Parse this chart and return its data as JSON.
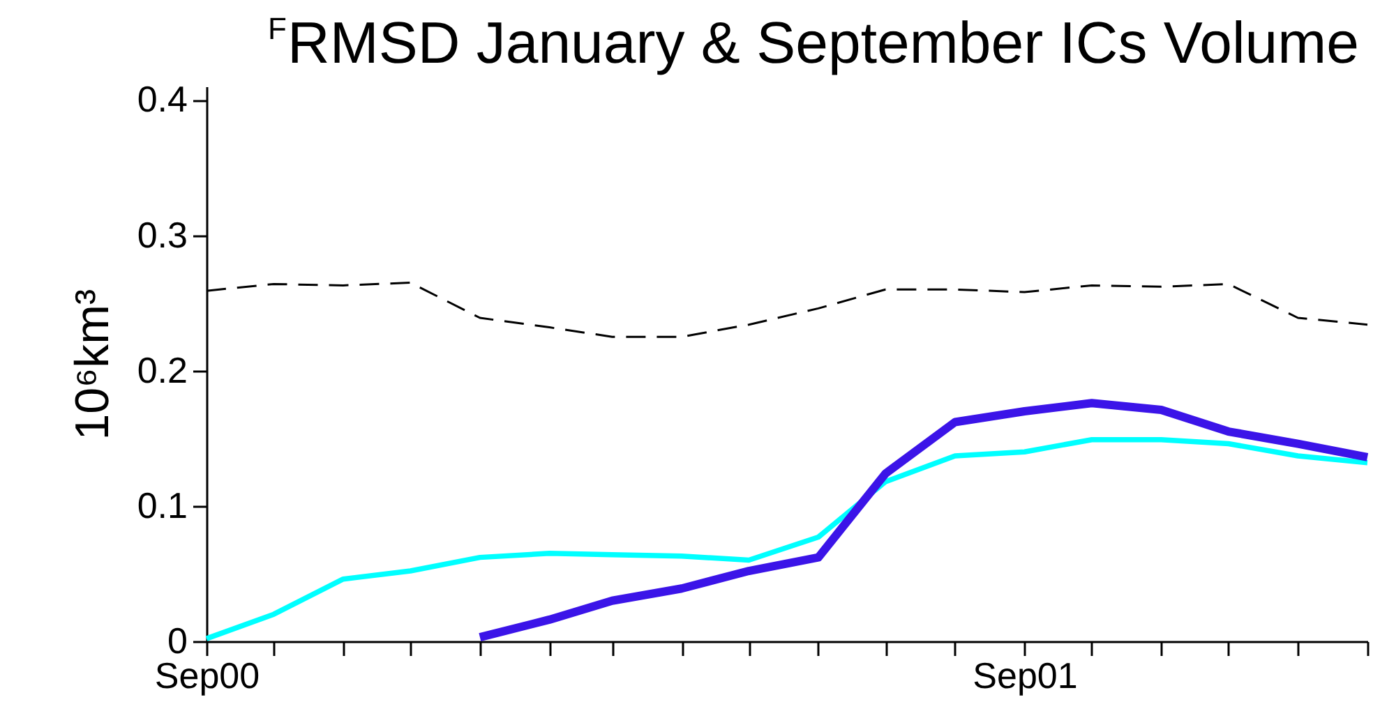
{
  "chart_data": {
    "type": "line",
    "title": "$^{F}$RMSD January & September ICs Volume",
    "ylabel": "10⁶km³",
    "x": [
      "2000-09",
      "2000-10",
      "2000-11",
      "2000-12",
      "2001-01",
      "2001-02",
      "2001-03",
      "2001-04",
      "2001-05",
      "2001-06",
      "2001-07",
      "2001-08",
      "2001-09",
      "2001-10",
      "2001-11",
      "2001-12",
      "2002-01",
      "2002-02"
    ],
    "series": [
      {
        "color": "#000000",
        "line_style": "dashed",
        "values": [
          0.259,
          0.264,
          0.263,
          0.265,
          0.239,
          0.232,
          0.225,
          0.225,
          0.234,
          0.246,
          0.26,
          0.26,
          0.258,
          0.263,
          0.262,
          0.264,
          0.239,
          0.234
        ]
      },
      {
        "color": "#00ffff",
        "line_style": "solid",
        "values": [
          0.002,
          0.02,
          0.046,
          0.052,
          0.062,
          0.065,
          0.064,
          0.063,
          0.06,
          0.077,
          0.118,
          0.137,
          0.14,
          0.149,
          0.149,
          0.146,
          0.137,
          0.132
        ]
      },
      {
        "color": "#3b14e8",
        "line_style": "solid",
        "values": [
          null,
          null,
          null,
          null,
          0.003,
          0.016,
          0.03,
          0.039,
          0.052,
          0.062,
          0.124,
          0.162,
          0.17,
          0.176,
          0.171,
          0.155,
          0.146,
          0.136
        ]
      }
    ],
    "xlim": [
      "2000-09",
      "2002-02"
    ],
    "xticks": [
      {
        "value": "2000-09",
        "label": "Sep00"
      },
      {
        "value": "2000-10",
        "label": null
      },
      {
        "value": "2000-11",
        "label": null
      },
      {
        "value": "2000-12",
        "label": null
      },
      {
        "value": "2001-01",
        "label": null
      },
      {
        "value": "2001-02",
        "label": null
      },
      {
        "value": "2001-03",
        "label": null
      },
      {
        "value": "2001-04",
        "label": null
      },
      {
        "value": "2001-05",
        "label": null
      },
      {
        "value": "2001-06",
        "label": null
      },
      {
        "value": "2001-07",
        "label": null
      },
      {
        "value": "2001-08",
        "label": null
      },
      {
        "value": "2001-09",
        "label": "Sep01"
      },
      {
        "value": "2001-10",
        "label": null
      },
      {
        "value": "2001-11",
        "label": null
      },
      {
        "value": "2001-12",
        "label": null
      },
      {
        "value": "2002-01",
        "label": null
      },
      {
        "value": "2002-02",
        "label": null
      }
    ],
    "ylim": [
      0,
      0.41
    ],
    "yticks": [
      0,
      0.1,
      0.2,
      0.3,
      0.4
    ],
    "grid": false,
    "legend": false
  }
}
